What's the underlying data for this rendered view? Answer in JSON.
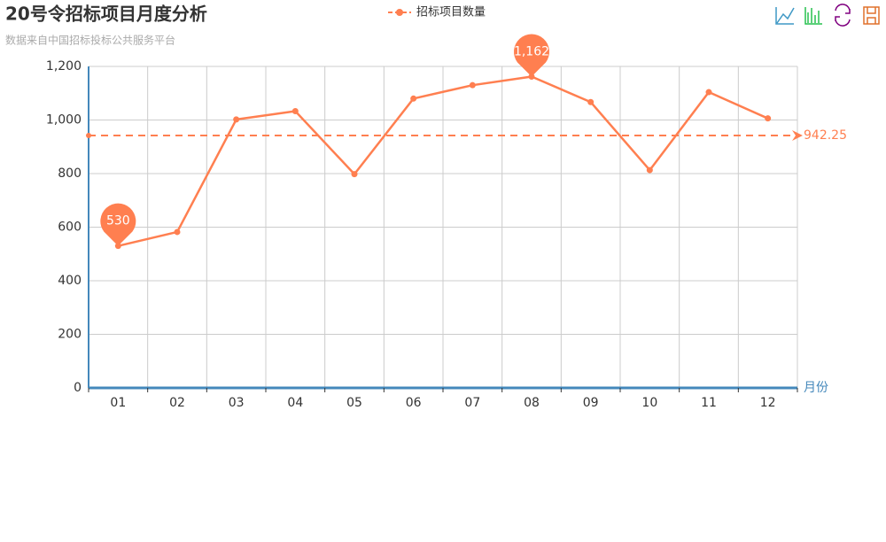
{
  "chart_data": {
    "type": "line",
    "title": "20号令招标项目月度分析",
    "subtitle": "数据来自中国招标投标公共服务平台",
    "x_label": "月份",
    "categories": [
      "01",
      "02",
      "03",
      "04",
      "05",
      "06",
      "07",
      "08",
      "09",
      "10",
      "11",
      "12"
    ],
    "series": [
      {
        "name": "招标项目数量",
        "color": "#ff7f50",
        "values": [
          530,
          582,
          1002,
          1033,
          798,
          1080,
          1130,
          1162,
          1067,
          813,
          1104,
          1006
        ],
        "value_labels": [
          "530",
          null,
          null,
          null,
          null,
          null,
          null,
          "1,162",
          null,
          null,
          null,
          null
        ],
        "mean_line": 942.25
      }
    ],
    "ylim": [
      0,
      1200
    ],
    "yticks": [
      0,
      200,
      400,
      600,
      800,
      {
        "value": 1000,
        "label": "1,000"
      },
      {
        "value": 1200,
        "label": "1,200"
      }
    ],
    "grid": true,
    "legend": "top"
  }
}
